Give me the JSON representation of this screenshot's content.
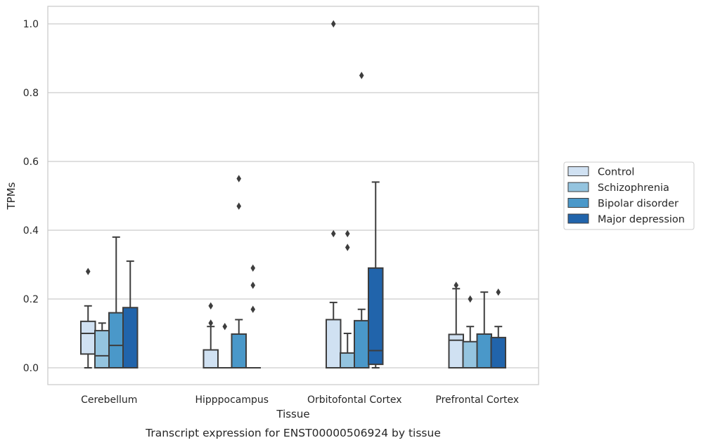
{
  "chart_data": {
    "type": "box",
    "caption": "Transcript expression for ENST00000506924 by tissue",
    "xlabel": "Tissue",
    "ylabel": "TPMs",
    "ylim": [
      -0.048,
      1.05
    ],
    "yticks": [
      0.0,
      0.2,
      0.4,
      0.6,
      0.8,
      1.0
    ],
    "ytick_labels": [
      "0.0",
      "0.2",
      "0.4",
      "0.6",
      "0.8",
      "1.0"
    ],
    "grid": "horizontal",
    "legend_position": "right",
    "categories": [
      "Cerebellum",
      "Hipppocampus",
      "Orbitofontal Cortex",
      "Prefrontal Cortex"
    ],
    "series": [
      {
        "name": "Control",
        "color": "#d0e1f2",
        "boxes": [
          {
            "q1": 0.04,
            "median": 0.1,
            "q3": 0.135,
            "whislo": 0.0,
            "whishi": 0.18,
            "fliers": [
              0.28
            ]
          },
          {
            "q1": 0.0,
            "median": 0.0,
            "q3": 0.052,
            "whislo": 0.0,
            "whishi": 0.12,
            "fliers": [
              0.13,
              0.18
            ]
          },
          {
            "q1": 0.0,
            "median": 0.0,
            "q3": 0.14,
            "whislo": 0.0,
            "whishi": 0.19,
            "fliers": [
              0.39,
              1.0
            ]
          },
          {
            "q1": 0.0,
            "median": 0.08,
            "q3": 0.097,
            "whislo": 0.0,
            "whishi": 0.23,
            "fliers": [
              0.24
            ]
          }
        ]
      },
      {
        "name": "Schizophrenia",
        "color": "#94c4df",
        "boxes": [
          {
            "q1": 0.0,
            "median": 0.035,
            "q3": 0.108,
            "whislo": 0.0,
            "whishi": 0.13,
            "fliers": []
          },
          {
            "q1": 0.0,
            "median": 0.0,
            "q3": 0.0,
            "whislo": 0.0,
            "whishi": 0.0,
            "fliers": [
              0.12
            ]
          },
          {
            "q1": 0.0,
            "median": 0.0,
            "q3": 0.043,
            "whislo": 0.0,
            "whishi": 0.1,
            "fliers": [
              0.35,
              0.39
            ]
          },
          {
            "q1": 0.0,
            "median": 0.0,
            "q3": 0.076,
            "whislo": 0.0,
            "whishi": 0.12,
            "fliers": [
              0.2
            ]
          }
        ]
      },
      {
        "name": "Bipolar disorder",
        "color": "#4a98c9",
        "boxes": [
          {
            "q1": 0.0,
            "median": 0.065,
            "q3": 0.16,
            "whislo": 0.0,
            "whishi": 0.38,
            "fliers": []
          },
          {
            "q1": 0.0,
            "median": 0.0,
            "q3": 0.098,
            "whislo": 0.0,
            "whishi": 0.14,
            "fliers": [
              0.47,
              0.55
            ]
          },
          {
            "q1": 0.0,
            "median": 0.0,
            "q3": 0.137,
            "whislo": 0.0,
            "whishi": 0.17,
            "fliers": [
              0.85
            ]
          },
          {
            "q1": 0.0,
            "median": 0.0,
            "q3": 0.098,
            "whislo": 0.0,
            "whishi": 0.22,
            "fliers": []
          }
        ]
      },
      {
        "name": "Major depression",
        "color": "#2164ab",
        "boxes": [
          {
            "q1": 0.0,
            "median": 0.0,
            "q3": 0.175,
            "whislo": 0.0,
            "whishi": 0.31,
            "fliers": []
          },
          {
            "q1": 0.0,
            "median": 0.0,
            "q3": 0.0,
            "whislo": 0.0,
            "whishi": 0.0,
            "fliers": [
              0.17,
              0.24,
              0.29
            ]
          },
          {
            "q1": 0.01,
            "median": 0.05,
            "q3": 0.29,
            "whislo": 0.0,
            "whishi": 0.54,
            "fliers": []
          },
          {
            "q1": 0.0,
            "median": 0.0,
            "q3": 0.088,
            "whislo": 0.0,
            "whishi": 0.12,
            "fliers": [
              0.22
            ]
          }
        ]
      }
    ]
  }
}
